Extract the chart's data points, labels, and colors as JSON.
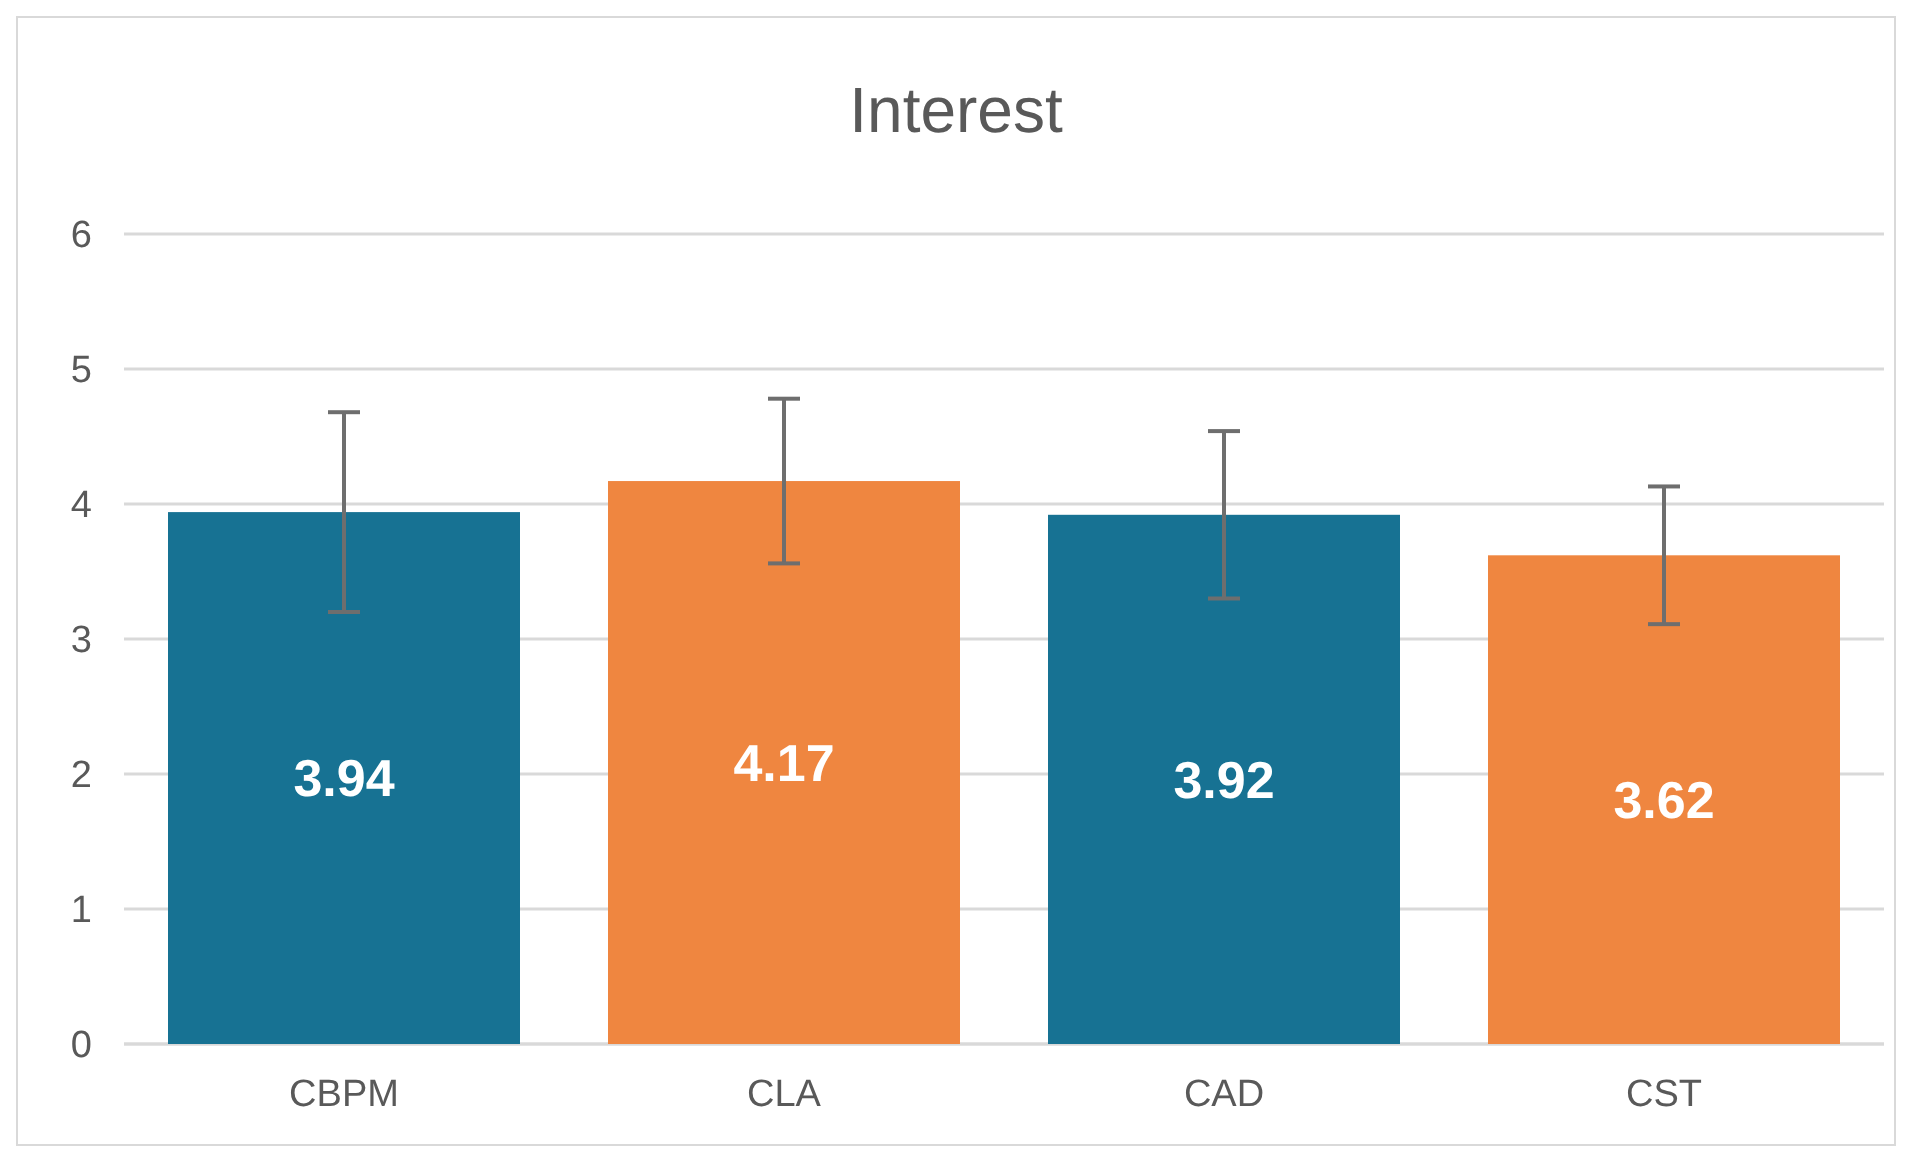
{
  "chart_data": {
    "type": "bar",
    "title": "Interest",
    "categories": [
      "CBPM",
      "CLA",
      "CAD",
      "CST"
    ],
    "values": [
      3.94,
      4.17,
      3.92,
      3.62
    ],
    "colors": [
      "#177293",
      "#ef8640",
      "#177293",
      "#ef8640"
    ],
    "errors": [
      0.74,
      0.61,
      0.62,
      0.51
    ],
    "ylim": [
      0,
      6
    ],
    "yticks": [
      0,
      1,
      2,
      3,
      4,
      5,
      6
    ],
    "grid": "y",
    "data_labels": true
  }
}
